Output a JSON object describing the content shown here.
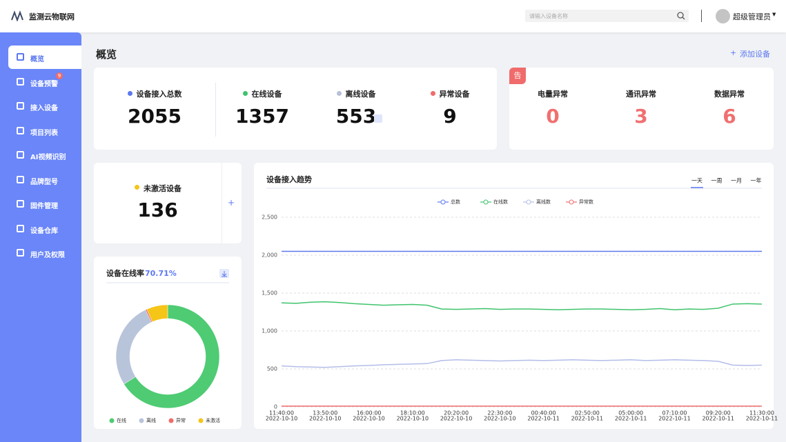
{
  "header": {
    "logo_text": "监测云物联网",
    "search_placeholder": "请输入设备名称",
    "user_name": "超级管理员"
  },
  "sidebar": {
    "items": [
      "概览",
      "设备预警",
      "接入设备",
      "项目列表",
      "AI视频识别",
      "品牌型号",
      "固件管理",
      "设备仓库",
      "用户及权限"
    ],
    "alert_badge": "9"
  },
  "page_title": "概览",
  "add_button": "添加设备",
  "stats": [
    {
      "label": "设备接入总数",
      "value": "2055",
      "color": "#5b78f0"
    },
    {
      "label": "在线设备",
      "value": "1357",
      "color": "#3ec36b"
    },
    {
      "label": "离线设备",
      "value": "553",
      "color": "#b8c0d8"
    },
    {
      "label": "异常设备",
      "value": "9",
      "color": "#f06b6b"
    }
  ],
  "anomalies": {
    "badge": "告",
    "items": [
      {
        "label": "电量异常",
        "value": "0"
      },
      {
        "label": "通讯异常",
        "value": "3"
      },
      {
        "label": "数据异常",
        "value": "6"
      }
    ]
  },
  "inactive": {
    "label": "未激活设备",
    "value": "136",
    "color": "#f5c518"
  },
  "chart_data": [
    {
      "type": "line",
      "title": "设备接入趋势",
      "ranges": [
        "一天",
        "一周",
        "一月",
        "一年"
      ],
      "categories": [
        "11:40:00",
        null,
        null,
        "13:50:00",
        null,
        null,
        "16:00:00",
        null,
        null,
        "18:10:00",
        null,
        null,
        "20:20:00",
        null,
        null,
        "22:30:00",
        null,
        null,
        "00:40:00",
        null,
        null,
        "02:50:00",
        null,
        null,
        "05:00:00",
        null,
        null,
        "07:10:00",
        null,
        null,
        "09:20:00",
        null,
        null,
        "11:30:00"
      ],
      "category_dates": [
        "2022-10-10",
        null,
        null,
        "2022-10-10",
        null,
        null,
        "2022-10-10",
        null,
        null,
        "2022-10-10",
        null,
        null,
        "2022-10-10",
        null,
        null,
        "2022-10-10",
        null,
        null,
        "2022-10-11",
        null,
        null,
        "2022-10-11",
        null,
        null,
        "2022-10-11",
        null,
        null,
        "2022-10-11",
        null,
        null,
        "2022-10-11",
        null,
        null,
        "2022-10-11"
      ],
      "ylim": [
        0,
        2500
      ],
      "yticks": [
        0,
        500,
        {
          "value": 1000,
          "label": "1,000"
        },
        {
          "value": 1500,
          "label": "1,500"
        },
        {
          "value": 2000,
          "label": "2,000"
        },
        {
          "value": 2500,
          "label": "2,500"
        }
      ],
      "grid": true,
      "series": [
        {
          "name": "总数",
          "color": "#5b78f0",
          "values": [
            2050,
            2050,
            2050,
            2050,
            2050,
            2050,
            2050,
            2050,
            2050,
            2050,
            2050,
            2050,
            2050,
            2050,
            2050,
            2050,
            2050,
            2050,
            2050,
            2050,
            2050,
            2050,
            2050,
            2050,
            2050,
            2050,
            2050,
            2050,
            2050,
            2050,
            2050,
            2050,
            2050,
            2050
          ]
        },
        {
          "name": "在线数",
          "color": "#3ec36b",
          "values": [
            1370,
            1365,
            1380,
            1385,
            1375,
            1360,
            1350,
            1340,
            1345,
            1350,
            1340,
            1290,
            1285,
            1290,
            1295,
            1285,
            1290,
            1290,
            1285,
            1280,
            1285,
            1290,
            1290,
            1285,
            1280,
            1285,
            1295,
            1280,
            1290,
            1285,
            1300,
            1355,
            1360,
            1355
          ]
        },
        {
          "name": "离线数",
          "color": "#b3bde8",
          "values": [
            540,
            530,
            525,
            520,
            530,
            540,
            545,
            555,
            560,
            565,
            570,
            610,
            620,
            615,
            610,
            605,
            610,
            615,
            610,
            615,
            620,
            615,
            610,
            615,
            620,
            610,
            615,
            620,
            615,
            610,
            600,
            550,
            545,
            550
          ]
        },
        {
          "name": "异常数",
          "color": "#f06b6b",
          "values": [
            9,
            9,
            9,
            9,
            9,
            9,
            9,
            9,
            9,
            9,
            9,
            9,
            9,
            9,
            9,
            9,
            9,
            9,
            9,
            9,
            9,
            9,
            9,
            9,
            9,
            9,
            9,
            9,
            9,
            9,
            9,
            9,
            9,
            9
          ]
        }
      ]
    },
    {
      "type": "pie",
      "title": "设备在线率",
      "subtitle": "70.71%",
      "categories": [
        "在线",
        "离线",
        "异常",
        "未激活"
      ],
      "values": [
        1357,
        553,
        9,
        136
      ],
      "colors": [
        "#4ecb73",
        "#b8c4da",
        "#f06b6b",
        "#f5c518"
      ]
    }
  ]
}
